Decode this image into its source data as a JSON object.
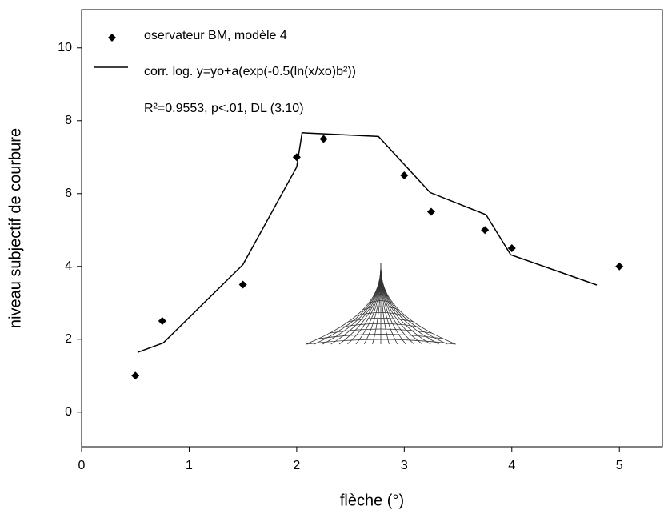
{
  "chart_data": {
    "type": "scatter",
    "xlabel": "flèche (°)",
    "ylabel": "niveau subjectif de courbure",
    "xlim": [
      0,
      5.4
    ],
    "ylim": [
      -0.95,
      11.05
    ],
    "xticks": [
      0,
      1,
      2,
      3,
      4,
      5
    ],
    "yticks": [
      0,
      2,
      4,
      6,
      8,
      10
    ],
    "annotation": "R²=0.9553, p<.01, DL (3.10)",
    "series": [
      {
        "name": "oservateur BM, modèle 4",
        "type": "scatter",
        "color": "#000000",
        "x": [
          0.5,
          0.75,
          1.5,
          2,
          2.25,
          3,
          3.25,
          3.75,
          4,
          5
        ],
        "values": [
          1,
          2.5,
          3.5,
          7,
          7.5,
          6.5,
          5.5,
          5,
          4.5,
          4
        ]
      },
      {
        "name": "corr. log. y=yo+a(exp(-0.5(ln(x/xo)b²))",
        "type": "line",
        "color": "#000000",
        "x": [
          0.52,
          0.76,
          1.5,
          2.0,
          2.05,
          2.76,
          3.24,
          3.76,
          3.99,
          4.79
        ],
        "values": [
          1.64,
          1.9,
          4.05,
          6.73,
          7.67,
          7.57,
          6.03,
          5.42,
          4.32,
          3.49
        ]
      }
    ]
  }
}
